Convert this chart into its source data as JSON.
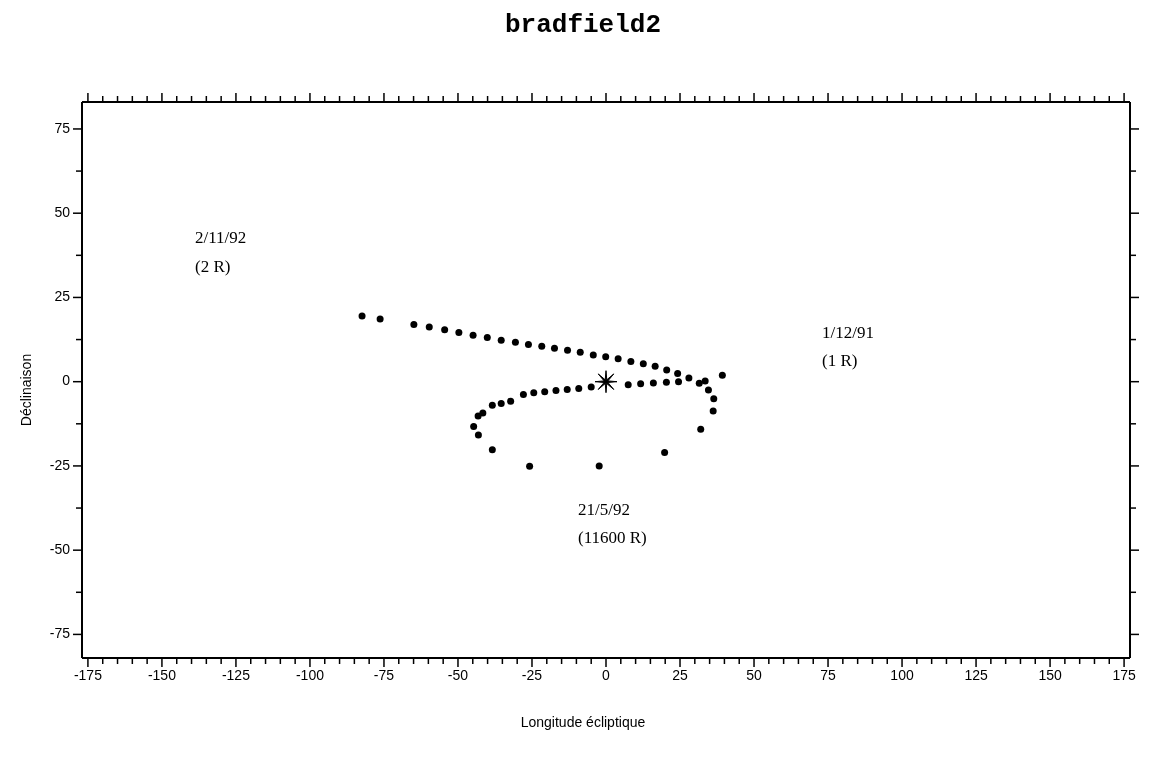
{
  "chart_data": {
    "type": "scatter",
    "title": "bradfield2",
    "xlabel": "Longitude écliptique",
    "ylabel": "Déclinaison",
    "xlim": [
      -177,
      177
    ],
    "ylim": [
      -82,
      83
    ],
    "xticks": [
      -175,
      {
        "value": -170,
        "label": null
      },
      {
        "value": -165,
        "label": null
      },
      {
        "value": -160,
        "label": null
      },
      {
        "value": -155,
        "label": null
      },
      -150,
      {
        "value": -145,
        "label": null
      },
      {
        "value": -140,
        "label": null
      },
      {
        "value": -135,
        "label": null
      },
      {
        "value": -130,
        "label": null
      },
      -125,
      {
        "value": -120,
        "label": null
      },
      {
        "value": -115,
        "label": null
      },
      {
        "value": -110,
        "label": null
      },
      {
        "value": -105,
        "label": null
      },
      -100,
      {
        "value": -95,
        "label": null
      },
      {
        "value": -90,
        "label": null
      },
      {
        "value": -85,
        "label": null
      },
      {
        "value": -80,
        "label": null
      },
      -75,
      {
        "value": -70,
        "label": null
      },
      {
        "value": -65,
        "label": null
      },
      {
        "value": -60,
        "label": null
      },
      {
        "value": -55,
        "label": null
      },
      -50,
      {
        "value": -45,
        "label": null
      },
      {
        "value": -40,
        "label": null
      },
      {
        "value": -35,
        "label": null
      },
      {
        "value": -30,
        "label": null
      },
      -25,
      {
        "value": -20,
        "label": null
      },
      {
        "value": -15,
        "label": null
      },
      {
        "value": -10,
        "label": null
      },
      {
        "value": -5,
        "label": null
      },
      0,
      {
        "value": 5,
        "label": null
      },
      {
        "value": 10,
        "label": null
      },
      {
        "value": 15,
        "label": null
      },
      {
        "value": 20,
        "label": null
      },
      25,
      {
        "value": 30,
        "label": null
      },
      {
        "value": 35,
        "label": null
      },
      {
        "value": 40,
        "label": null
      },
      {
        "value": 45,
        "label": null
      },
      50,
      {
        "value": 55,
        "label": null
      },
      {
        "value": 60,
        "label": null
      },
      {
        "value": 65,
        "label": null
      },
      {
        "value": 70,
        "label": null
      },
      75,
      {
        "value": 80,
        "label": null
      },
      {
        "value": 85,
        "label": null
      },
      {
        "value": 90,
        "label": null
      },
      {
        "value": 95,
        "label": null
      },
      100,
      {
        "value": 105,
        "label": null
      },
      {
        "value": 110,
        "label": null
      },
      {
        "value": 115,
        "label": null
      },
      {
        "value": 120,
        "label": null
      },
      125,
      {
        "value": 130,
        "label": null
      },
      {
        "value": 135,
        "label": null
      },
      {
        "value": 140,
        "label": null
      },
      {
        "value": 145,
        "label": null
      },
      150,
      {
        "value": 155,
        "label": null
      },
      {
        "value": 160,
        "label": null
      },
      {
        "value": 165,
        "label": null
      },
      {
        "value": 170,
        "label": null
      },
      175
    ],
    "yticks": [
      -75,
      {
        "value": -62.5,
        "label": null
      },
      -50,
      {
        "value": -37.5,
        "label": null
      },
      -25,
      {
        "value": -12.5,
        "label": null
      },
      0,
      {
        "value": 12.5,
        "label": null
      },
      25,
      {
        "value": 37.5,
        "label": null
      },
      50,
      {
        "value": 62.5,
        "label": null
      },
      75
    ],
    "series": [
      {
        "color": "#000000",
        "marker": "circle",
        "x": [
          39.3,
          33.5,
          24.5,
          20.4,
          16.0,
          11.7,
          7.5,
          -5.0,
          -9.2,
          -13.1,
          -16.9,
          -20.7,
          -24.4,
          -27.9,
          -32.2,
          -35.4,
          -38.4,
          -41.6,
          -43.2,
          -44.7,
          -43.1,
          -38.4,
          -25.8,
          -2.3,
          19.8,
          32.0,
          36.2,
          36.4,
          34.6,
          31.5,
          28.0,
          24.2,
          20.5,
          16.6,
          12.6,
          8.4,
          4.1,
          -0.1,
          -4.3,
          -8.7,
          -13.0,
          -17.4,
          -21.7,
          -26.2,
          -30.6,
          -35.4,
          -40.1,
          -44.9,
          -49.7,
          -54.5,
          -59.7,
          -64.9,
          -76.3,
          -82.4
        ],
        "values": [
          1.9,
          0.2,
          0.0,
          -0.2,
          -0.4,
          -0.6,
          -0.9,
          -1.6,
          -2.0,
          -2.3,
          -2.6,
          -3.0,
          -3.3,
          -3.8,
          -5.8,
          -6.5,
          -7.0,
          -9.3,
          -10.2,
          -13.3,
          -15.8,
          -20.2,
          -25.1,
          -25.0,
          -21.0,
          -14.1,
          -8.7,
          -5.1,
          -2.5,
          -0.5,
          1.1,
          2.4,
          3.5,
          4.6,
          5.3,
          6.0,
          6.8,
          7.4,
          7.9,
          8.7,
          9.3,
          9.9,
          10.5,
          11.0,
          11.7,
          12.3,
          13.1,
          13.8,
          14.6,
          15.4,
          16.2,
          17.0,
          18.6,
          19.5
        ]
      },
      {
        "color": "#000000",
        "marker": "star",
        "x": [
          0
        ],
        "values": [
          0
        ]
      }
    ],
    "annotations": [
      "2/11/92",
      "(2 R)",
      "1/12/91",
      "(1 R)",
      "21/5/92",
      "(11600 R)"
    ]
  }
}
